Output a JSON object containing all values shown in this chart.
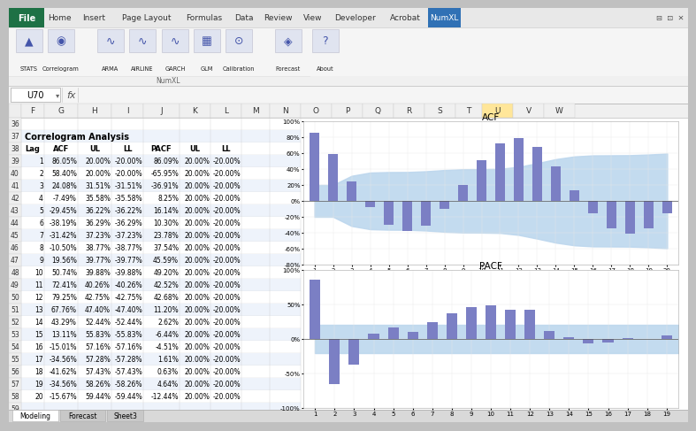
{
  "lags": [
    1,
    2,
    3,
    4,
    5,
    6,
    7,
    8,
    9,
    10,
    11,
    12,
    13,
    14,
    15,
    16,
    17,
    18,
    19,
    20
  ],
  "acf": [
    86.05,
    58.4,
    24.08,
    -7.49,
    -29.45,
    -38.19,
    -31.42,
    -10.5,
    19.56,
    50.74,
    72.41,
    79.25,
    67.76,
    43.29,
    13.11,
    -15.01,
    -34.56,
    -41.62,
    -34.56,
    -15.67
  ],
  "acf_ul": [
    20.0,
    20.0,
    31.51,
    35.58,
    36.22,
    36.29,
    37.23,
    38.77,
    39.77,
    39.88,
    40.26,
    42.75,
    47.4,
    52.44,
    55.83,
    57.16,
    57.28,
    57.43,
    58.26,
    59.44
  ],
  "acf_ll": [
    -20.0,
    -20.0,
    -31.51,
    -35.58,
    -36.22,
    -36.29,
    -37.23,
    -38.77,
    -39.77,
    -39.88,
    -40.26,
    -42.75,
    -47.4,
    -52.44,
    -55.83,
    -57.16,
    -57.28,
    -57.43,
    -58.26,
    -59.44
  ],
  "pacf": [
    86.09,
    -65.95,
    -36.91,
    8.25,
    16.14,
    10.3,
    23.78,
    37.54,
    45.59,
    49.2,
    42.52,
    42.68,
    11.2,
    2.62,
    -6.44,
    -4.51,
    1.61,
    0.63,
    4.64,
    -12.44
  ],
  "pacf_ul": [
    20.0,
    20.0,
    20.0,
    20.0,
    20.0,
    20.0,
    20.0,
    20.0,
    20.0,
    20.0,
    20.0,
    20.0,
    20.0,
    20.0,
    20.0,
    20.0,
    20.0,
    20.0,
    20.0,
    20.0
  ],
  "pacf_ll": [
    -20.0,
    -20.0,
    -20.0,
    -20.0,
    -20.0,
    -20.0,
    -20.0,
    -20.0,
    -20.0,
    -20.0,
    -20.0,
    -20.0,
    -20.0,
    -20.0,
    -20.0,
    -20.0,
    -20.0,
    -20.0,
    -20.0,
    -20.0
  ],
  "bar_color": "#7B7FC4",
  "band_color": "#BDD7EE",
  "col_headers": [
    "Lag",
    "ACF",
    "UL",
    "LL",
    "PACF",
    "UL",
    "LL"
  ],
  "title_text": "Correlogram Analysis",
  "acf_title": "ACF",
  "pacf_title": "PACF",
  "ribbon_tabs": [
    "File",
    "Home",
    "Insert",
    "Page Layout",
    "Formulas",
    "Data",
    "Review",
    "View",
    "Developer",
    "Acrobat",
    "NumXL"
  ],
  "ribbon_icons": [
    "STATS",
    "Correlogram",
    "ARMA",
    "AIRLINE",
    "GARCH",
    "GLM",
    "Calibration",
    "Forecast",
    "About"
  ],
  "cell_ref": "U70",
  "col_letters": [
    "F",
    "G",
    "H",
    "I",
    "J",
    "K",
    "L",
    "M",
    "N",
    "O",
    "P",
    "Q",
    "R",
    "S",
    "T",
    "U",
    "V",
    "W"
  ],
  "row_numbers": [
    36,
    37,
    38,
    39,
    40,
    41,
    42,
    43,
    44,
    45,
    46,
    47,
    48,
    49,
    50,
    51,
    52,
    53,
    54,
    55,
    56,
    57,
    58,
    59
  ],
  "active_col": "U",
  "sheet_tabs": [
    "Modeling",
    "Forecast",
    "Sheet3"
  ]
}
